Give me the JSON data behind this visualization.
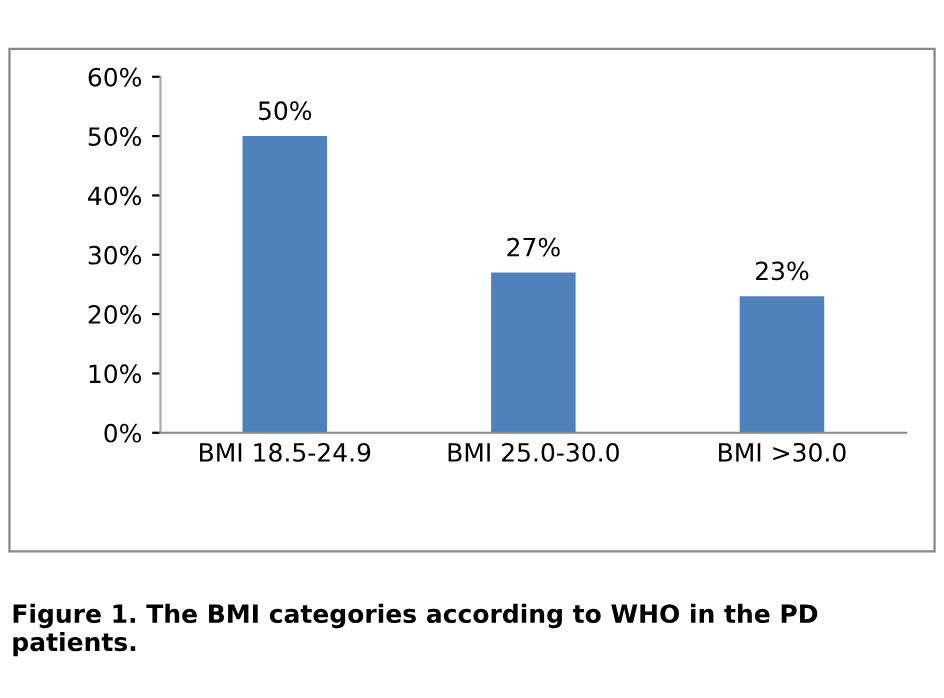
{
  "chart_data": {
    "type": "bar",
    "categories": [
      "BMI 18.5-24.9",
      "BMI 25.0-30.0",
      "BMI >30.0"
    ],
    "values": [
      50,
      27,
      23
    ],
    "value_labels": [
      "50%",
      "27%",
      "23%"
    ],
    "color": "#4f81bd",
    "ylim": [
      0,
      60
    ],
    "yticks": [
      {
        "value": 0,
        "label": "0%"
      },
      {
        "value": 10,
        "label": "10%"
      },
      {
        "value": 20,
        "label": "20%"
      },
      {
        "value": 30,
        "label": "30%"
      },
      {
        "value": 40,
        "label": "40%"
      },
      {
        "value": 50,
        "label": "50%"
      },
      {
        "value": 60,
        "label": "60%"
      }
    ],
    "grid": false,
    "legend": false,
    "annotations": [
      "Figure 1. The BMI categories according to WHO in the PD patients."
    ]
  }
}
